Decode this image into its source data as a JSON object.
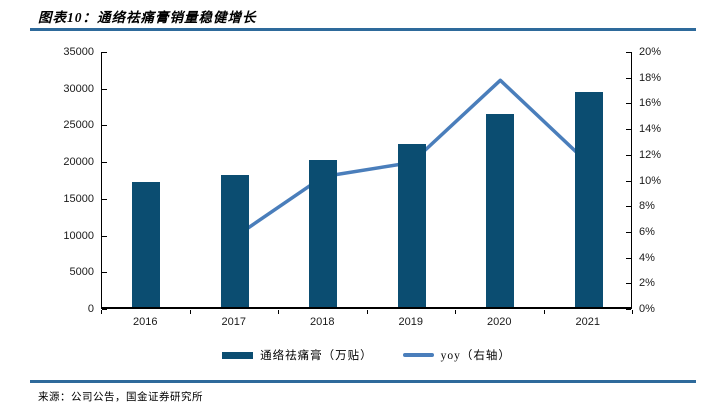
{
  "header": {
    "title": "图表10：通络祛痛膏销量稳健增长",
    "rule_color": "#2E6A9B"
  },
  "footer": {
    "source": "来源：公司公告，国金证券研究所"
  },
  "colors": {
    "bar": "#0B4D71",
    "line": "#4A7EBB",
    "axis": "#000000"
  },
  "chart_data": {
    "type": "bar",
    "subtype": "combo-bar-line",
    "title": "图表10：通络祛痛膏销量稳健增长",
    "categories": [
      "2016",
      "2017",
      "2018",
      "2019",
      "2020",
      "2021"
    ],
    "series": [
      {
        "name": "通络祛痛膏（万贴）",
        "type": "bar",
        "axis": "left",
        "color": "#0B4D71",
        "values": [
          17000,
          18000,
          20000,
          22200,
          26300,
          29300
        ]
      },
      {
        "name": "yoy（右轴）",
        "type": "line",
        "axis": "right",
        "color": "#4A7EBB",
        "values": [
          null,
          5.6,
          10.3,
          11.4,
          17.8,
          11.3
        ]
      }
    ],
    "axes": {
      "left": {
        "min": 0,
        "max": 35000,
        "step": 5000,
        "labels": [
          "0",
          "5000",
          "10000",
          "15000",
          "20000",
          "25000",
          "30000",
          "35000"
        ]
      },
      "right": {
        "min": 0,
        "max": 20,
        "step": 2,
        "unit": "%",
        "labels": [
          "0%",
          "2%",
          "4%",
          "6%",
          "8%",
          "10%",
          "12%",
          "14%",
          "16%",
          "18%",
          "20%"
        ]
      }
    },
    "grid": false,
    "legend_position": "bottom"
  }
}
